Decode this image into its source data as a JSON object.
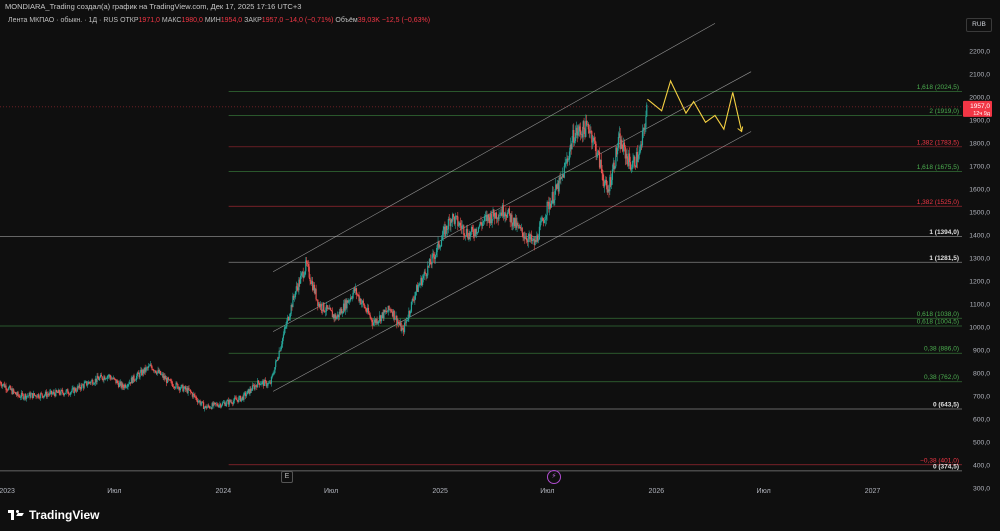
{
  "header": {
    "title": "MONDIARA_Trading создал(а) график на TradingView.com, Дек 17, 2025 17:16 UTC+3"
  },
  "legend": {
    "symbol": "Лента МКПАО · обыкн. · 1Д · RUS",
    "open_label": "ОТКР",
    "open": "1971,0",
    "high_label": "МАКС",
    "high": "1980,0",
    "low_label": "МИН",
    "low": "1954,0",
    "close_label": "ЗАКР",
    "close": "1957,0",
    "change": "−14,0 (−0,71%)",
    "volume_label": "Объём",
    "volume": "39,03K",
    "volume_change": "−12,5 (−0,63%)"
  },
  "currency": "RUB",
  "price_tag": {
    "value": "1957,0",
    "countdown": "12ч 9д"
  },
  "buttons": {
    "e": "E",
    "bolt": "⚡"
  },
  "brand": "TradingView",
  "colors": {
    "up": "#26a69a",
    "down": "#ef5350",
    "forecast": "#f5d142",
    "fib_red": "#f23645",
    "fib_green": "#4caf50",
    "background": "#0f0f0f"
  },
  "chart_data": {
    "type": "candlestick",
    "title": "Лента МКПАО",
    "ylim": [
      300,
      2300
    ],
    "xlim": [
      "2022-12-20",
      "2027-06-01"
    ],
    "y_ticks": [
      "2200,0",
      "2100,0",
      "2000,0",
      "1900,0",
      "1800,0",
      "1700,0",
      "1600,0",
      "1500,0",
      "1400,0",
      "1300,0",
      "1200,0",
      "1100,0",
      "1000,0",
      "900,0",
      "800,0",
      "700,0",
      "600,0",
      "500,0",
      "400,0",
      "300,0"
    ],
    "y_tick_values": [
      2200,
      2100,
      2000,
      1900,
      1800,
      1700,
      1600,
      1500,
      1400,
      1300,
      1200,
      1100,
      1000,
      900,
      800,
      700,
      600,
      500,
      400,
      300
    ],
    "x_ticks": [
      {
        "label": "2023",
        "date": "2023-01-01"
      },
      {
        "label": "Июл",
        "date": "2023-07-01"
      },
      {
        "label": "2024",
        "date": "2024-01-01"
      },
      {
        "label": "Июл",
        "date": "2024-07-01"
      },
      {
        "label": "2025",
        "date": "2025-01-01"
      },
      {
        "label": "Июл",
        "date": "2025-07-01"
      },
      {
        "label": "2026",
        "date": "2026-01-01"
      },
      {
        "label": "Июл",
        "date": "2026-07-01"
      },
      {
        "label": "2027",
        "date": "2027-01-01"
      }
    ],
    "price_path": [
      [
        "2022-12-20",
        760
      ],
      [
        "2023-01-20",
        700
      ],
      [
        "2023-03-01",
        705
      ],
      [
        "2023-04-20",
        720
      ],
      [
        "2023-05-20",
        760
      ],
      [
        "2023-06-20",
        790
      ],
      [
        "2023-07-15",
        740
      ],
      [
        "2023-08-10",
        790
      ],
      [
        "2023-09-01",
        830
      ],
      [
        "2023-10-01",
        760
      ],
      [
        "2023-11-05",
        720
      ],
      [
        "2023-12-01",
        650
      ],
      [
        "2024-01-05",
        670
      ],
      [
        "2024-02-01",
        690
      ],
      [
        "2024-03-01",
        760
      ],
      [
        "2024-03-20",
        750
      ],
      [
        "2024-04-10",
        950
      ],
      [
        "2024-05-01",
        1150
      ],
      [
        "2024-05-20",
        1270
      ],
      [
        "2024-06-10",
        1100
      ],
      [
        "2024-07-10",
        1040
      ],
      [
        "2024-08-10",
        1160
      ],
      [
        "2024-09-10",
        1020
      ],
      [
        "2024-10-10",
        1080
      ],
      [
        "2024-10-30",
        980
      ],
      [
        "2024-11-20",
        1150
      ],
      [
        "2024-12-20",
        1300
      ],
      [
        "2025-01-20",
        1480
      ],
      [
        "2025-02-20",
        1400
      ],
      [
        "2025-03-20",
        1470
      ],
      [
        "2025-04-20",
        1510
      ],
      [
        "2025-05-15",
        1420
      ],
      [
        "2025-06-10",
        1360
      ],
      [
        "2025-07-01",
        1520
      ],
      [
        "2025-07-25",
        1640
      ],
      [
        "2025-08-15",
        1840
      ],
      [
        "2025-09-10",
        1870
      ],
      [
        "2025-09-25",
        1740
      ],
      [
        "2025-10-10",
        1580
      ],
      [
        "2025-10-30",
        1810
      ],
      [
        "2025-11-20",
        1700
      ],
      [
        "2025-12-05",
        1760
      ],
      [
        "2025-12-17",
        1957
      ]
    ],
    "forecast_path": [
      [
        "2025-12-17",
        1990
      ],
      [
        "2026-01-10",
        1940
      ],
      [
        "2026-01-25",
        2070
      ],
      [
        "2026-02-20",
        1930
      ],
      [
        "2026-03-05",
        1980
      ],
      [
        "2026-03-25",
        1890
      ],
      [
        "2026-04-10",
        1920
      ],
      [
        "2026-04-25",
        1860
      ],
      [
        "2026-05-10",
        2020
      ],
      [
        "2026-05-25",
        1850
      ]
    ],
    "fib_levels": [
      {
        "label": "1,618 (2024,5)",
        "value": 2024.5,
        "color": "green",
        "start": "2024-01-10"
      },
      {
        "label": "2 (1919,0)",
        "value": 1919.0,
        "color": "green",
        "start": "2024-01-10"
      },
      {
        "label": "1,382 (1783,5)",
        "value": 1783.5,
        "color": "red",
        "start": "2024-01-10"
      },
      {
        "label": "1,618 (1675,5)",
        "value": 1675.5,
        "color": "green",
        "start": "2024-01-10"
      },
      {
        "label": "1,382 (1525,0)",
        "value": 1525.0,
        "color": "red",
        "start": "2024-01-10"
      },
      {
        "label": "1 (1394,0)",
        "value": 1394.0,
        "color": "white",
        "start": "2022-12-20"
      },
      {
        "label": "1 (1281,5)",
        "value": 1281.5,
        "color": "white",
        "start": "2024-01-10"
      },
      {
        "label": "0,618 (1038,0)",
        "value": 1038.0,
        "color": "green",
        "start": "2024-01-10"
      },
      {
        "label": "0,618 (1004,5)",
        "value": 1004.5,
        "color": "green",
        "start": "2022-12-20"
      },
      {
        "label": "0,38 (886,0)",
        "value": 886.0,
        "color": "green",
        "start": "2024-01-10"
      },
      {
        "label": "0,38 (762,0)",
        "value": 762.0,
        "color": "green",
        "start": "2024-01-10"
      },
      {
        "label": "0 (643,5)",
        "value": 643.5,
        "color": "white",
        "start": "2024-01-10"
      },
      {
        "label": "−0,38 (401,0)",
        "value": 401.0,
        "color": "red",
        "start": "2024-01-10"
      },
      {
        "label": "0 (374,5)",
        "value": 374.5,
        "color": "white",
        "start": "2022-12-20"
      }
    ],
    "channel_lines": [
      {
        "from": [
          "2024-03-25",
          1240
        ],
        "to": [
          "2026-04-10",
          2320
        ]
      },
      {
        "from": [
          "2024-03-25",
          980
        ],
        "to": [
          "2026-06-10",
          2110
        ]
      },
      {
        "from": [
          "2024-03-25",
          720
        ],
        "to": [
          "2026-06-10",
          1850
        ]
      }
    ],
    "last_close": 1957.0,
    "grid": false
  }
}
